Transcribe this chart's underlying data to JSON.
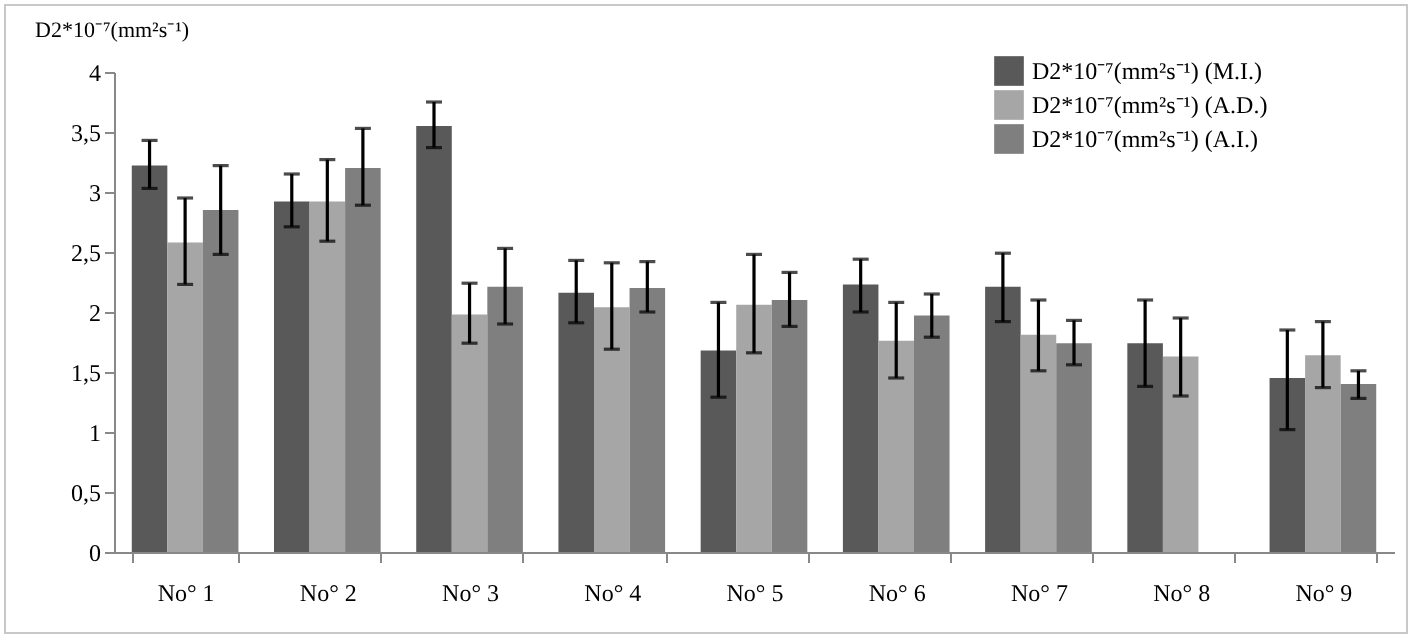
{
  "chart_data": {
    "type": "bar",
    "ylabel": "D2*10⁻⁷(mm²s⁻¹)",
    "categories": [
      "No° 1",
      "No° 2",
      "No° 3",
      "No° 4",
      "No° 5",
      "No° 6",
      "No° 7",
      "No° 8",
      "No° 9"
    ],
    "series": [
      {
        "name": "D2*10⁻⁷(mm²s⁻¹)  (M.I.)",
        "color": "#595959",
        "values": [
          3.22,
          2.92,
          3.55,
          2.16,
          1.68,
          2.23,
          2.21,
          1.74,
          1.45
        ],
        "errors": [
          [
            3.03,
            3.43
          ],
          [
            2.71,
            3.15
          ],
          [
            3.37,
            3.75
          ],
          [
            1.91,
            2.43
          ],
          [
            1.29,
            2.08
          ],
          [
            2.0,
            2.44
          ],
          [
            1.92,
            2.49
          ],
          [
            1.38,
            2.1
          ],
          [
            1.02,
            1.85
          ]
        ]
      },
      {
        "name": "D2*10⁻⁷(mm²s⁻¹)  (A.D.)",
        "color": "#a6a6a6",
        "values": [
          2.58,
          2.92,
          1.98,
          2.04,
          2.06,
          1.76,
          1.81,
          1.63,
          1.64
        ],
        "errors": [
          [
            2.23,
            2.95
          ],
          [
            2.59,
            3.27
          ],
          [
            1.74,
            2.24
          ],
          [
            1.69,
            2.41
          ],
          [
            1.66,
            2.48
          ],
          [
            1.45,
            2.08
          ],
          [
            1.51,
            2.1
          ],
          [
            1.3,
            1.95
          ],
          [
            1.37,
            1.92
          ]
        ]
      },
      {
        "name": "D2*10⁻⁷(mm²s⁻¹)   (A.I.)",
        "color": "#7f7f7f",
        "values": [
          2.85,
          3.2,
          2.21,
          2.2,
          2.1,
          1.97,
          1.74,
          null,
          1.4
        ],
        "errors": [
          [
            2.48,
            3.22
          ],
          [
            2.89,
            3.53
          ],
          [
            1.9,
            2.53
          ],
          [
            2.0,
            2.42
          ],
          [
            1.88,
            2.33
          ],
          [
            1.79,
            2.15
          ],
          [
            1.56,
            1.93
          ],
          null,
          [
            1.28,
            1.51
          ]
        ]
      }
    ],
    "ylim": [
      0,
      4
    ],
    "yticks": [
      0,
      {
        "value": 0.5,
        "label": "0,5"
      },
      1,
      {
        "value": 1.5,
        "label": "1,5"
      },
      2,
      {
        "value": 2.5,
        "label": "2,5"
      },
      3,
      {
        "value": 3.5,
        "label": "3,5"
      },
      4
    ],
    "legend": "top right"
  }
}
